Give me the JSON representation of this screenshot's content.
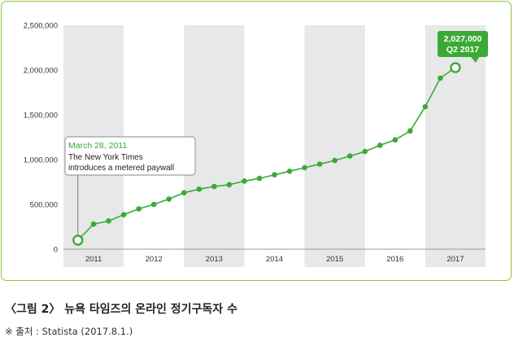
{
  "chart_data": {
    "type": "line",
    "x_ticks": [
      "2011",
      "2012",
      "2013",
      "2014",
      "2015",
      "2016",
      "2017"
    ],
    "y_ticks": [
      "0",
      "500,000",
      "1,000,000",
      "1,500,000",
      "2,000,000",
      "2,500,000"
    ],
    "ylim": [
      0,
      2500000
    ],
    "xlim": [
      2011.0,
      2018.0
    ],
    "grid": "alternating year bands",
    "colors": {
      "line": "#3aaa35",
      "band": "#e8e8e8",
      "frame": "#8cc63f"
    },
    "series": [
      {
        "x": [
          2011.24,
          2011.5,
          2011.75,
          2012.0,
          2012.25,
          2012.5,
          2012.75,
          2013.0,
          2013.25,
          2013.5,
          2013.75,
          2014.0,
          2014.25,
          2014.5,
          2014.75,
          2015.0,
          2015.25,
          2015.5,
          2015.75,
          2016.0,
          2016.25,
          2016.5,
          2016.75,
          2017.0,
          2017.25,
          2017.5
        ],
        "y": [
          100000,
          280000,
          315000,
          385000,
          450000,
          500000,
          560000,
          630000,
          670000,
          700000,
          720000,
          760000,
          790000,
          830000,
          870000,
          910000,
          950000,
          990000,
          1040000,
          1090000,
          1160000,
          1220000,
          1320000,
          1590000,
          1910000,
          2027000
        ]
      }
    ],
    "annotations": [
      {
        "date": "March 28, 2011",
        "text_line1": "The New York Times",
        "text_line2": "introduces a metered paywall"
      },
      {
        "value": "2,027,000",
        "period": "Q2 2017"
      }
    ]
  },
  "caption": "〈그림 2〉 뉴욕 타임즈의 온라인 정기구독자 수",
  "source": "※ 출처 : Statista (2017.8.1.)"
}
